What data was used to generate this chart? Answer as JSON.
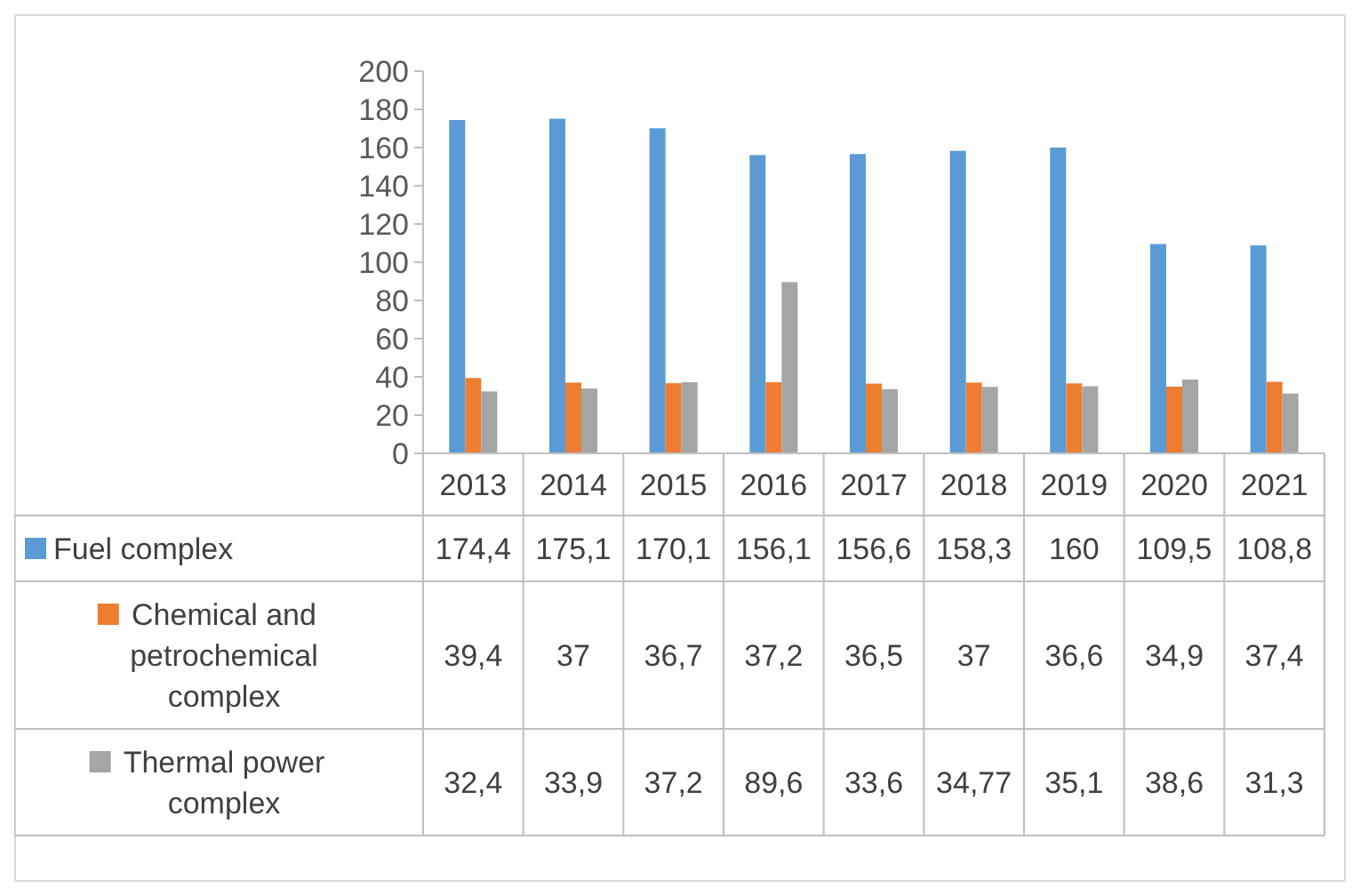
{
  "chart_data": {
    "type": "bar",
    "categories": [
      "2013",
      "2014",
      "2015",
      "2016",
      "2017",
      "2018",
      "2019",
      "2020",
      "2021"
    ],
    "ylim": [
      0,
      200
    ],
    "yticks": [
      0,
      20,
      40,
      60,
      80,
      100,
      120,
      140,
      160,
      180,
      200
    ],
    "grid": false,
    "legend": "bottom",
    "series": [
      {
        "name": "Fuel complex",
        "color": "#5b9bd5",
        "values": [
          174.4,
          175.1,
          170.1,
          156.1,
          156.6,
          158.3,
          160,
          109.5,
          108.8
        ],
        "value_labels": [
          "174,4",
          "175,1",
          "170,1",
          "156,1",
          "156,6",
          "158,3",
          "160",
          "109,5",
          "108,8"
        ]
      },
      {
        "name": "Chemical and petrochemical complex",
        "color": "#ed7d31",
        "values": [
          39.4,
          37,
          36.7,
          37.2,
          36.5,
          37,
          36.6,
          34.9,
          37.4
        ],
        "value_labels": [
          "39,4",
          "37",
          "36,7",
          "37,2",
          "36,5",
          "37",
          "36,6",
          "34,9",
          "37,4"
        ]
      },
      {
        "name": "Thermal power complex",
        "color": "#a5a5a5",
        "values": [
          32.4,
          33.9,
          37.2,
          89.6,
          33.6,
          34.77,
          35.1,
          38.6,
          31.3
        ],
        "value_labels": [
          "32,4",
          "33,9",
          "37,2",
          "89,6",
          "33,6",
          "34,77",
          "35,1",
          "38,6",
          "31,3"
        ]
      }
    ]
  }
}
